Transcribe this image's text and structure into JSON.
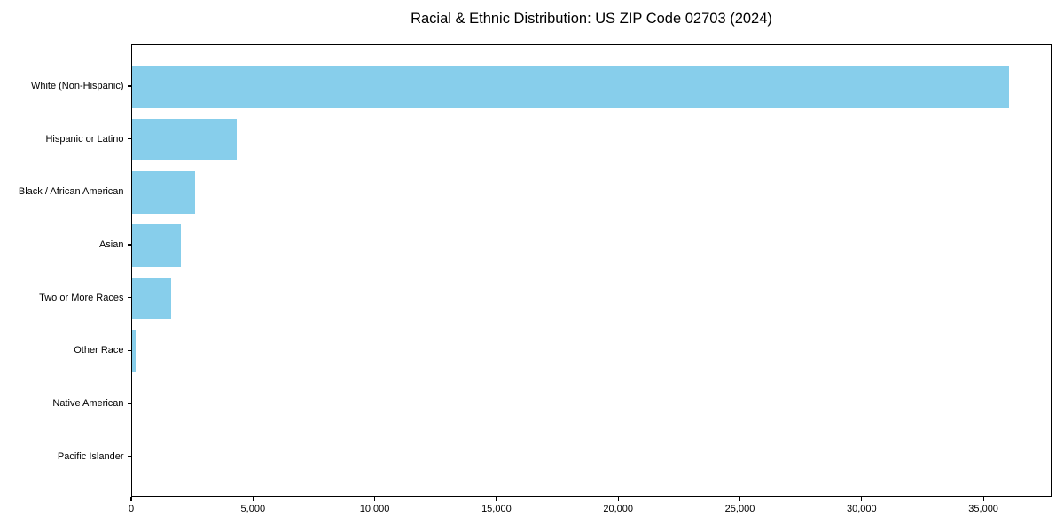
{
  "chart_data": {
    "type": "bar",
    "orientation": "horizontal",
    "title": "Racial & Ethnic Distribution: US ZIP Code 02703 (2024)",
    "categories": [
      "White (Non-Hispanic)",
      "Hispanic or Latino",
      "Black / African American",
      "Asian",
      "Two or More Races",
      "Other Race",
      "Native American",
      "Pacific Islander"
    ],
    "values": [
      36000,
      4300,
      2600,
      2000,
      1600,
      160,
      0,
      0
    ],
    "xlabel": "",
    "ylabel": "",
    "xlim": [
      0,
      37800
    ],
    "x_ticks": [
      0,
      5000,
      10000,
      15000,
      20000,
      25000,
      30000,
      35000
    ],
    "x_tick_labels": [
      "0",
      "5,000",
      "10,000",
      "15,000",
      "20,000",
      "25,000",
      "30,000",
      "35,000"
    ],
    "grid": false,
    "legend": false,
    "bar_color": "#87CEEB",
    "axis_color": "#000000",
    "text_color": "#000000",
    "background_color": "#ffffff"
  }
}
